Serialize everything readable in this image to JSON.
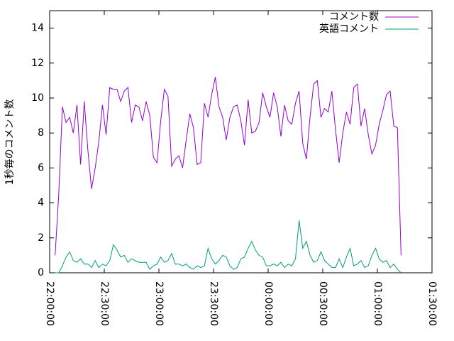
{
  "chart_data": {
    "type": "line",
    "y_label": "1秒毎のコメント数",
    "x": [
      "22:03:00",
      "22:05:00",
      "22:07:00",
      "22:09:00",
      "22:11:00",
      "22:13:00",
      "22:15:00",
      "22:17:00",
      "22:19:00",
      "22:21:00",
      "22:23:00",
      "22:25:00",
      "22:27:00",
      "22:29:00",
      "22:31:00",
      "22:33:00",
      "22:35:00",
      "22:37:00",
      "22:39:00",
      "22:41:00",
      "22:43:00",
      "22:45:00",
      "22:47:00",
      "22:49:00",
      "22:51:00",
      "22:53:00",
      "22:55:00",
      "22:57:00",
      "22:59:00",
      "23:01:00",
      "23:03:00",
      "23:05:00",
      "23:07:00",
      "23:09:00",
      "23:11:00",
      "23:13:00",
      "23:15:00",
      "23:17:00",
      "23:19:00",
      "23:21:00",
      "23:23:00",
      "23:25:00",
      "23:27:00",
      "23:29:00",
      "23:31:00",
      "23:33:00",
      "23:35:00",
      "23:37:00",
      "23:39:00",
      "23:41:00",
      "23:43:00",
      "23:45:00",
      "23:47:00",
      "23:49:00",
      "23:51:00",
      "23:53:00",
      "23:55:00",
      "23:57:00",
      "23:59:00",
      "00:01:00",
      "00:03:00",
      "00:05:00",
      "00:07:00",
      "00:09:00",
      "00:11:00",
      "00:13:00",
      "00:15:00",
      "00:17:00",
      "00:19:00",
      "00:21:00",
      "00:23:00",
      "00:25:00",
      "00:27:00",
      "00:29:00",
      "00:31:00",
      "00:33:00",
      "00:35:00",
      "00:37:00",
      "00:39:00",
      "00:41:00",
      "00:43:00",
      "00:45:00",
      "00:47:00",
      "00:49:00",
      "00:51:00",
      "00:53:00",
      "00:55:00",
      "00:57:00",
      "00:59:00",
      "01:01:00",
      "01:03:00",
      "01:05:00",
      "01:07:00",
      "01:09:00",
      "01:11:00",
      "01:13:00"
    ],
    "series": [
      {
        "name": "コメント数",
        "color": "#9400d3",
        "values": [
          1.0,
          4.5,
          9.5,
          8.6,
          8.9,
          8.0,
          9.6,
          6.2,
          9.8,
          7.0,
          4.8,
          6.0,
          7.5,
          9.6,
          7.9,
          10.6,
          10.5,
          10.5,
          9.8,
          10.4,
          10.6,
          8.6,
          9.6,
          9.5,
          8.7,
          9.8,
          9.0,
          6.6,
          6.3,
          8.7,
          10.5,
          10.1,
          6.1,
          6.5,
          6.7,
          6.0,
          7.6,
          9.1,
          8.3,
          6.2,
          6.3,
          9.7,
          8.9,
          10.2,
          11.2,
          9.5,
          8.9,
          7.6,
          8.9,
          9.5,
          9.6,
          8.7,
          7.3,
          9.9,
          8.0,
          8.1,
          8.6,
          10.3,
          9.5,
          8.9,
          10.3,
          9.5,
          7.8,
          9.6,
          8.7,
          8.5,
          9.7,
          10.4,
          7.4,
          6.5,
          8.9,
          10.8,
          11.0,
          8.9,
          9.4,
          9.2,
          10.4,
          8.2,
          6.3,
          8.0,
          9.2,
          8.5,
          10.6,
          10.8,
          8.4,
          9.4,
          7.9,
          6.8,
          7.3,
          8.5,
          9.3,
          10.2,
          10.4,
          8.4,
          8.3,
          1.0
        ]
      },
      {
        "name": "英語コメント",
        "color": "#009e73",
        "values": [
          0.0,
          0.0,
          0.4,
          0.9,
          1.2,
          0.7,
          0.6,
          0.8,
          0.5,
          0.5,
          0.3,
          0.7,
          0.3,
          0.5,
          0.4,
          0.7,
          1.6,
          1.3,
          0.9,
          1.0,
          0.6,
          0.8,
          0.7,
          0.6,
          0.6,
          0.6,
          0.2,
          0.4,
          0.5,
          0.9,
          0.6,
          0.7,
          1.1,
          0.5,
          0.5,
          0.4,
          0.5,
          0.3,
          0.2,
          0.4,
          0.3,
          0.4,
          1.4,
          0.8,
          0.5,
          0.7,
          1.0,
          0.9,
          0.4,
          0.2,
          0.3,
          0.8,
          0.9,
          1.4,
          1.8,
          1.3,
          1.0,
          0.9,
          0.4,
          0.4,
          0.5,
          0.4,
          0.6,
          0.3,
          0.5,
          0.4,
          0.8,
          3.0,
          1.4,
          1.8,
          1.0,
          0.6,
          0.7,
          1.2,
          0.7,
          0.5,
          0.3,
          0.3,
          0.8,
          0.3,
          0.9,
          1.4,
          0.4,
          0.5,
          0.7,
          0.3,
          0.4,
          1.0,
          1.4,
          0.8,
          0.6,
          0.7,
          0.3,
          0.5,
          0.2,
          0.0
        ]
      }
    ],
    "xlim": [
      "22:00:00",
      "01:30:00"
    ],
    "xticks": [
      "22:00:00",
      "22:30:00",
      "23:00:00",
      "23:30:00",
      "00:00:00",
      "00:30:00",
      "01:00:00",
      "01:30:00"
    ],
    "ylim": [
      0,
      15
    ],
    "yticks": [
      0,
      2,
      4,
      6,
      8,
      10,
      12,
      14
    ],
    "legend": "top-right"
  }
}
